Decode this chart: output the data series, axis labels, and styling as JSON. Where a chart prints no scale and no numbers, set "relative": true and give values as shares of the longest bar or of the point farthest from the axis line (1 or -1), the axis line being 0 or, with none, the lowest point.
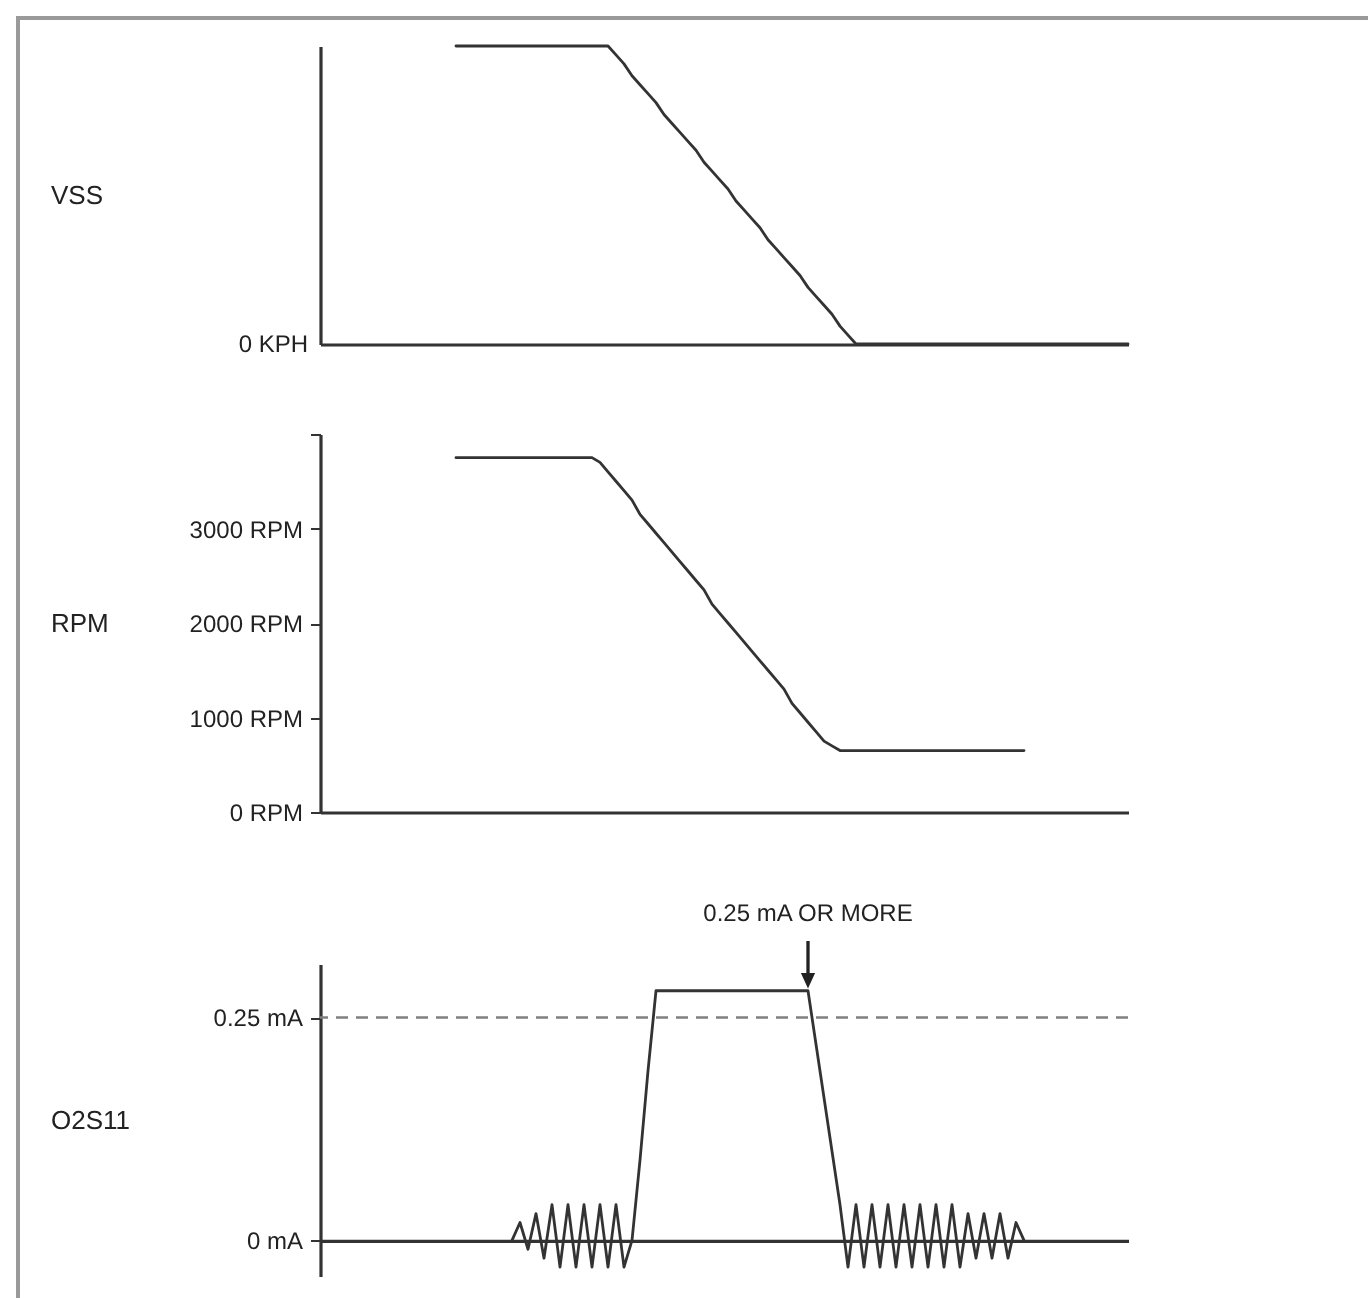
{
  "chart_data": [
    {
      "type": "line",
      "ylabel": "VSS",
      "relative": true,
      "color": "#333333",
      "annotations": [
        "0 KPH"
      ],
      "categories": [
        null,
        null,
        null,
        null,
        null,
        null,
        null,
        null,
        null,
        null,
        null,
        null,
        null,
        null,
        null,
        null,
        null,
        null,
        null,
        null,
        null,
        null,
        null,
        null,
        null,
        null,
        null,
        null,
        null,
        null,
        null,
        null,
        null,
        null,
        null,
        null,
        null,
        null,
        null,
        null,
        null,
        null,
        null,
        null,
        null,
        null,
        null,
        null,
        null,
        null,
        null,
        null,
        null,
        null,
        null,
        null,
        null,
        null,
        null,
        null,
        null,
        null,
        null,
        null,
        null,
        null,
        null,
        null,
        null,
        null,
        null,
        null,
        null,
        null,
        null,
        null,
        null,
        null,
        null,
        null,
        null,
        null,
        null,
        null,
        null,
        null,
        null,
        null,
        null,
        null,
        null,
        null,
        null,
        null,
        null,
        null,
        null,
        null,
        null,
        null,
        null,
        null
      ],
      "values": [
        null,
        null,
        null,
        null,
        null,
        null,
        null,
        null,
        null,
        null,
        null,
        null,
        null,
        null,
        null,
        null,
        null,
        1,
        1,
        1,
        1,
        1,
        1,
        1,
        1,
        1,
        1,
        1,
        1,
        1,
        1,
        1,
        1,
        1,
        1,
        1,
        1,
        0.97,
        0.94,
        0.9,
        0.87,
        0.84,
        0.81,
        0.77,
        0.74,
        0.71,
        0.68,
        0.65,
        0.61,
        0.58,
        0.55,
        0.52,
        0.48,
        0.45,
        0.42,
        0.39,
        0.35,
        0.32,
        0.29,
        0.26,
        0.23,
        0.19,
        0.16,
        0.13,
        0.1,
        0.06,
        0.03,
        0,
        0,
        0,
        0,
        0,
        0,
        0,
        0,
        0,
        0,
        0,
        0,
        0,
        0,
        0,
        0,
        0,
        0,
        0,
        0,
        0,
        0,
        0,
        0,
        0,
        0,
        0,
        0,
        0,
        0,
        0,
        0,
        0,
        0,
        0
      ]
    },
    {
      "type": "line",
      "ylabel": "RPM",
      "color": "#333333",
      "ylim": [
        0,
        4000
      ],
      "yticks": [
        {
          "value": 0,
          "label": "0 RPM"
        },
        {
          "value": 1000,
          "label": "1000 RPM"
        },
        {
          "value": 2000,
          "label": "2000 RPM"
        },
        {
          "value": 3000,
          "label": "3000 RPM"
        },
        {
          "value": 4000,
          "label": null
        }
      ],
      "categories": [
        null,
        null,
        null,
        null,
        null,
        null,
        null,
        null,
        null,
        null,
        null,
        null,
        null,
        null,
        null,
        null,
        null,
        null,
        null,
        null,
        null,
        null,
        null,
        null,
        null,
        null,
        null,
        null,
        null,
        null,
        null,
        null,
        null,
        null,
        null,
        null,
        null,
        null,
        null,
        null,
        null,
        null,
        null,
        null,
        null,
        null,
        null,
        null,
        null,
        null,
        null,
        null,
        null,
        null,
        null,
        null,
        null,
        null,
        null,
        null,
        null,
        null,
        null,
        null,
        null,
        null,
        null,
        null,
        null,
        null,
        null,
        null,
        null,
        null,
        null,
        null,
        null,
        null,
        null,
        null,
        null,
        null,
        null,
        null,
        null,
        null,
        null,
        null,
        null,
        null,
        null,
        null,
        null,
        null,
        null,
        null,
        null,
        null,
        null,
        null,
        null,
        null
      ],
      "values": [
        null,
        null,
        null,
        null,
        null,
        null,
        null,
        null,
        null,
        null,
        null,
        null,
        null,
        null,
        null,
        null,
        null,
        3750,
        3750,
        3750,
        3750,
        3750,
        3750,
        3750,
        3750,
        3750,
        3750,
        3750,
        3750,
        3750,
        3750,
        3750,
        3750,
        3750,
        3750,
        3700,
        3600,
        3500,
        3400,
        3300,
        3150,
        3050,
        2950,
        2850,
        2750,
        2650,
        2550,
        2450,
        2350,
        2200,
        2100,
        2000,
        1900,
        1800,
        1700,
        1600,
        1500,
        1400,
        1300,
        1150,
        1050,
        950,
        850,
        750,
        700,
        650,
        650,
        650,
        650,
        650,
        650,
        650,
        650,
        650,
        650,
        650,
        650,
        650,
        650,
        650,
        650,
        650,
        650,
        650,
        650,
        650,
        650,
        650,
        650,
        null,
        null,
        null,
        null,
        null,
        null,
        null,
        null,
        null,
        null,
        null,
        null,
        null
      ]
    },
    {
      "type": "line",
      "ylabel": "O2S11",
      "color": "#333333",
      "ylim": [
        -0.04,
        0.31
      ],
      "yticks": [
        {
          "value": 0,
          "label": "0 mA"
        },
        {
          "value": 0.25,
          "label": "0.25 mA"
        }
      ],
      "ref_lines": [
        {
          "axis": "y",
          "value": 0.25,
          "line_style": "dashed",
          "color": "#808080"
        }
      ],
      "annotations": [
        {
          "text": "0.25 mA OR MORE",
          "y": 0.28
        }
      ],
      "categories": [
        null,
        null,
        null,
        null,
        null,
        null,
        null,
        null,
        null,
        null,
        null,
        null,
        null,
        null,
        null,
        null,
        null,
        null,
        null,
        null,
        null,
        null,
        null,
        null,
        null,
        null,
        null,
        null,
        null,
        null,
        null,
        null,
        null,
        null,
        null,
        null,
        null,
        null,
        null,
        null,
        null,
        null,
        null,
        null,
        null,
        null,
        null,
        null,
        null,
        null,
        null,
        null,
        null,
        null,
        null,
        null,
        null,
        null,
        null,
        null,
        null,
        null,
        null,
        null,
        null,
        null,
        null,
        null,
        null,
        null,
        null,
        null,
        null,
        null,
        null,
        null,
        null,
        null,
        null,
        null,
        null,
        null,
        null,
        null,
        null,
        null,
        null,
        null,
        null,
        null,
        null,
        null,
        null,
        null,
        null,
        null,
        null,
        null,
        null,
        null,
        null,
        null
      ],
      "values": [
        null,
        null,
        null,
        null,
        null,
        null,
        null,
        null,
        null,
        null,
        null,
        null,
        null,
        null,
        null,
        null,
        null,
        null,
        null,
        null,
        null,
        null,
        null,
        null,
        0,
        0.02,
        -0.01,
        0.03,
        -0.02,
        0.04,
        -0.03,
        0.04,
        -0.03,
        0.04,
        -0.03,
        0.04,
        -0.03,
        0.04,
        -0.03,
        0,
        0.09,
        0.19,
        0.28,
        0.28,
        0.28,
        0.28,
        0.28,
        0.28,
        0.28,
        0.28,
        0.28,
        0.28,
        0.28,
        0.28,
        0.28,
        0.28,
        0.28,
        0.28,
        0.28,
        0.28,
        0.28,
        0.28,
        0.22,
        0.16,
        0.1,
        0.04,
        -0.03,
        0.04,
        -0.03,
        0.04,
        -0.03,
        0.04,
        -0.03,
        0.04,
        -0.03,
        0.04,
        -0.03,
        0.04,
        -0.03,
        0.04,
        -0.03,
        0.03,
        -0.02,
        0.03,
        -0.02,
        0.03,
        -0.02,
        0.02,
        0,
        null,
        null,
        null,
        null,
        null,
        null,
        null,
        null,
        null,
        null,
        null,
        null,
        null
      ]
    }
  ]
}
